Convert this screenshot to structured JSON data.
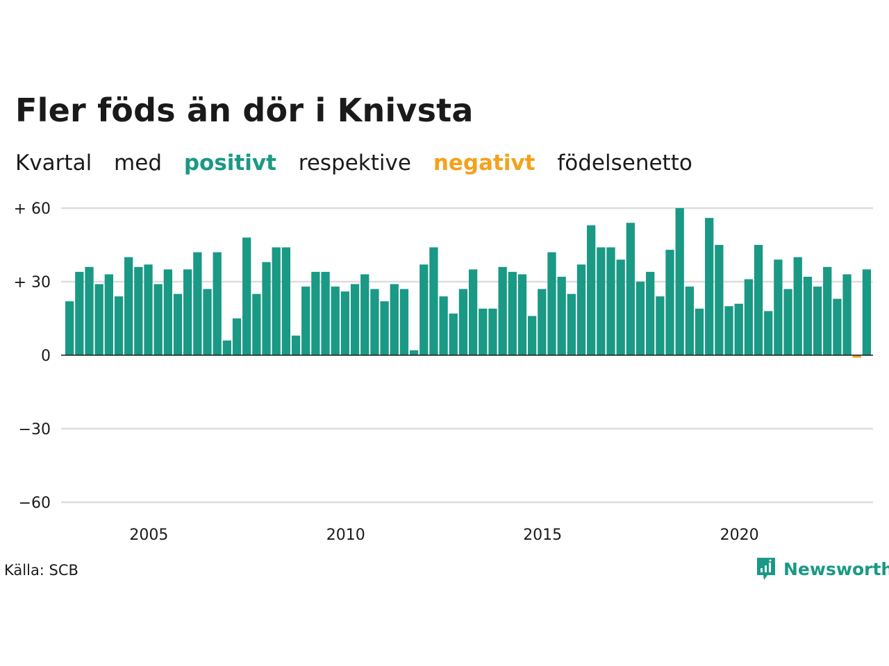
{
  "title": "Fler föds än dör i Knivsta",
  "subtitle": {
    "w1": "Kvartal",
    "w2": "med",
    "w3": "positivt",
    "w4": "respektive",
    "w5": "negativt",
    "w6": "födelsenetto"
  },
  "source": "Källa: SCB",
  "brand": {
    "name": "Newsworthy",
    "icon": "newsworthy-logo-icon"
  },
  "colors": {
    "positive": "#1a9985",
    "negative": "#f4a21c",
    "grid": "#dddddd",
    "text": "#1a1a1a"
  },
  "chart_data": {
    "type": "bar",
    "ylim": [
      -60,
      60
    ],
    "y_ticks": [
      {
        "value": 60,
        "label": "+ 60"
      },
      {
        "value": 30,
        "label": "+ 30"
      },
      {
        "value": 0,
        "label": "0"
      },
      {
        "value": -30,
        "label": "−30"
      },
      {
        "value": -60,
        "label": "−60"
      }
    ],
    "x_ticks": [
      {
        "year": 2005,
        "label": "2005"
      },
      {
        "year": 2010,
        "label": "2010"
      },
      {
        "year": 2015,
        "label": "2015"
      },
      {
        "year": 2020,
        "label": "2020"
      }
    ],
    "grid": true,
    "start_year": 2003,
    "start_quarter": 2,
    "values": [
      22,
      34,
      36,
      29,
      33,
      24,
      40,
      36,
      37,
      29,
      35,
      25,
      35,
      42,
      27,
      42,
      6,
      15,
      48,
      25,
      38,
      44,
      44,
      8,
      28,
      34,
      34,
      28,
      26,
      29,
      33,
      27,
      22,
      29,
      27,
      2,
      37,
      44,
      24,
      17,
      27,
      35,
      19,
      19,
      36,
      34,
      33,
      16,
      27,
      42,
      32,
      25,
      37,
      53,
      44,
      44,
      39,
      54,
      30,
      34,
      24,
      43,
      60,
      28,
      19,
      56,
      45,
      20,
      21,
      31,
      45,
      18,
      39,
      27,
      40,
      32,
      28,
      36,
      23,
      33,
      -1,
      35
    ]
  }
}
